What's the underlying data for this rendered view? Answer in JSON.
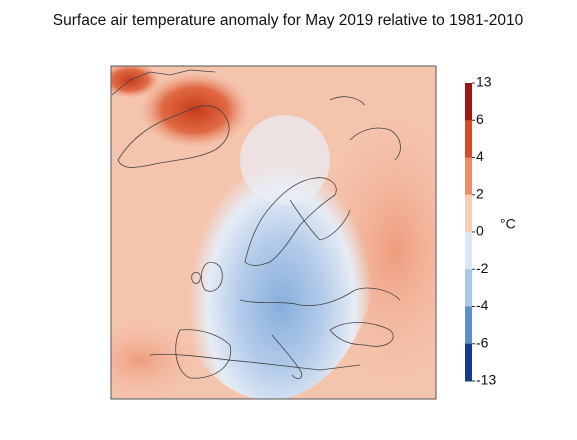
{
  "title": "Surface air temperature anomaly for May 2019 relative to 1981-2010",
  "colorbar": {
    "unit": "°C",
    "ticks": [
      13,
      6,
      4,
      2,
      0,
      -2,
      -4,
      -6,
      -13
    ],
    "colors": [
      "#a3150f",
      "#d64a26",
      "#ee8a66",
      "#f9cdb6",
      "#dde7f5",
      "#a9c6e8",
      "#5a8fcb",
      "#173a8a"
    ]
  }
}
